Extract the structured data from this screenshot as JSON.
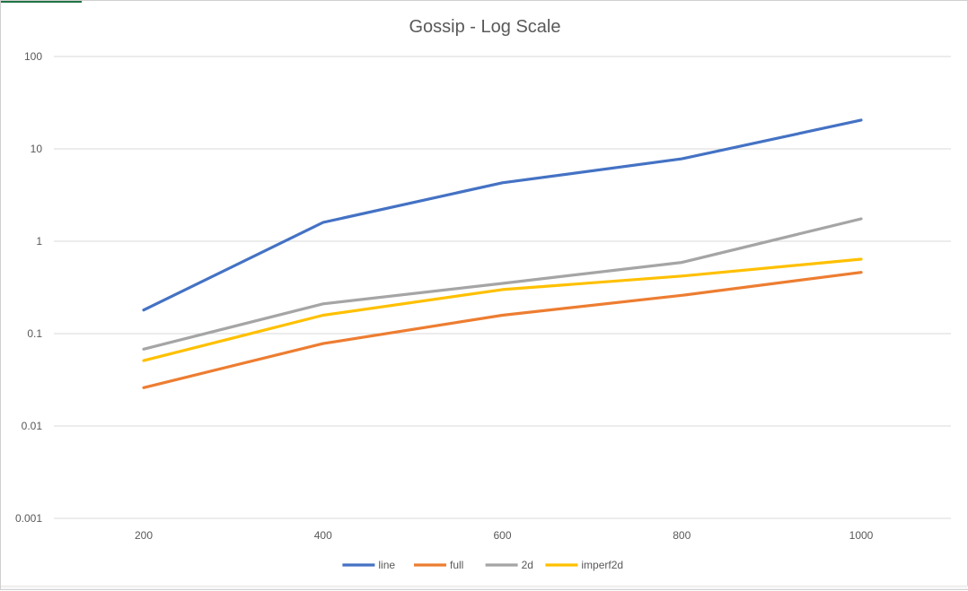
{
  "chart_data": {
    "type": "line",
    "title": "Gossip - Log Scale",
    "xlabel": "",
    "ylabel": "",
    "x_scale": "category",
    "y_scale": "log",
    "ylim": [
      0.001,
      100
    ],
    "y_ticks": [
      100,
      10,
      1,
      0.1,
      0.01,
      0.001
    ],
    "y_tick_labels": [
      "100",
      "10",
      "1",
      "0.1",
      "0.01",
      "0.001"
    ],
    "categories": [
      "200",
      "400",
      "600",
      "800",
      "1000"
    ],
    "series": [
      {
        "name": "line",
        "color": "#4472C4",
        "values": [
          0.18,
          1.6,
          4.3,
          7.8,
          20.5
        ]
      },
      {
        "name": "full",
        "color": "#ED7D31",
        "values": [
          0.026,
          0.078,
          0.158,
          0.26,
          0.46
        ]
      },
      {
        "name": "2d",
        "color": "#A5A5A5",
        "values": [
          0.068,
          0.21,
          0.35,
          0.59,
          1.75
        ]
      },
      {
        "name": "imperf2d",
        "color": "#FFC000",
        "values": [
          0.051,
          0.158,
          0.3,
          0.42,
          0.64
        ]
      }
    ],
    "grid": true,
    "legend_position": "bottom"
  }
}
